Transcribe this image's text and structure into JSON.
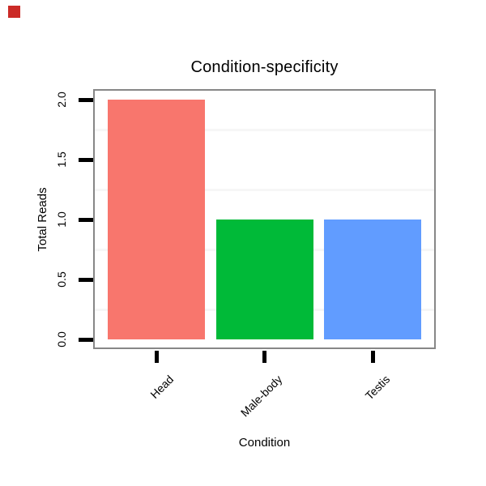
{
  "ui": {
    "corner_marker_color": "#cb2b27"
  },
  "chart_data": {
    "type": "bar",
    "title": "Condition-specificity",
    "xlabel": "Condition",
    "ylabel": "Total Reads",
    "categories": [
      "Head",
      "Male-body",
      "Testis"
    ],
    "values": [
      2,
      1,
      1
    ],
    "bar_colors": [
      "#f8766d",
      "#00ba38",
      "#619cff"
    ],
    "ylim": [
      0,
      2
    ],
    "ytick_labels": [
      "0.0",
      "0.5",
      "1.0",
      "1.5",
      "2.0"
    ],
    "yticks": [
      0,
      0.5,
      1,
      1.5,
      2
    ],
    "minor_gridlines": [
      0.25,
      0.75,
      1.25,
      1.75
    ],
    "grid": "faint horizontal minor lines only",
    "legend": "none",
    "panel_border_color": "#878787",
    "tick_color": "#000000"
  }
}
